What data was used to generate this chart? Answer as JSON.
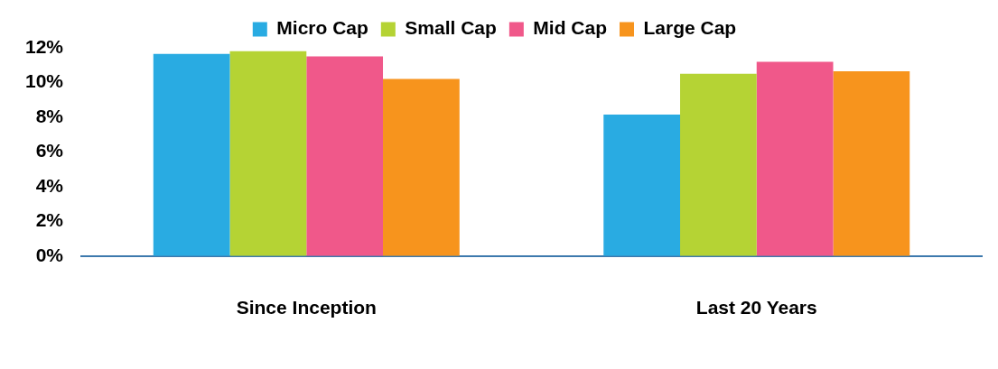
{
  "chart_data": {
    "type": "bar",
    "categories": [
      "Since Inception",
      "Last 20 Years"
    ],
    "series": [
      {
        "name": "Micro Cap",
        "color": "#29abe2",
        "values": [
          11.65,
          8.15
        ]
      },
      {
        "name": "Small Cap",
        "color": "#b5d334",
        "values": [
          11.8,
          10.5
        ]
      },
      {
        "name": "Mid Cap",
        "color": "#f0588a",
        "values": [
          11.5,
          11.2
        ]
      },
      {
        "name": "Large Cap",
        "color": "#f7941d",
        "values": [
          10.2,
          10.65
        ]
      }
    ],
    "ylim": [
      0,
      12
    ],
    "yticks": [
      {
        "value": 0,
        "label": "0%"
      },
      {
        "value": 2,
        "label": "2%"
      },
      {
        "value": 4,
        "label": "4%"
      },
      {
        "value": 6,
        "label": "6%"
      },
      {
        "value": 8,
        "label": "8%"
      },
      {
        "value": 10,
        "label": "10%"
      },
      {
        "value": 12,
        "label": "12%"
      }
    ],
    "grid": false,
    "legend": "top"
  }
}
